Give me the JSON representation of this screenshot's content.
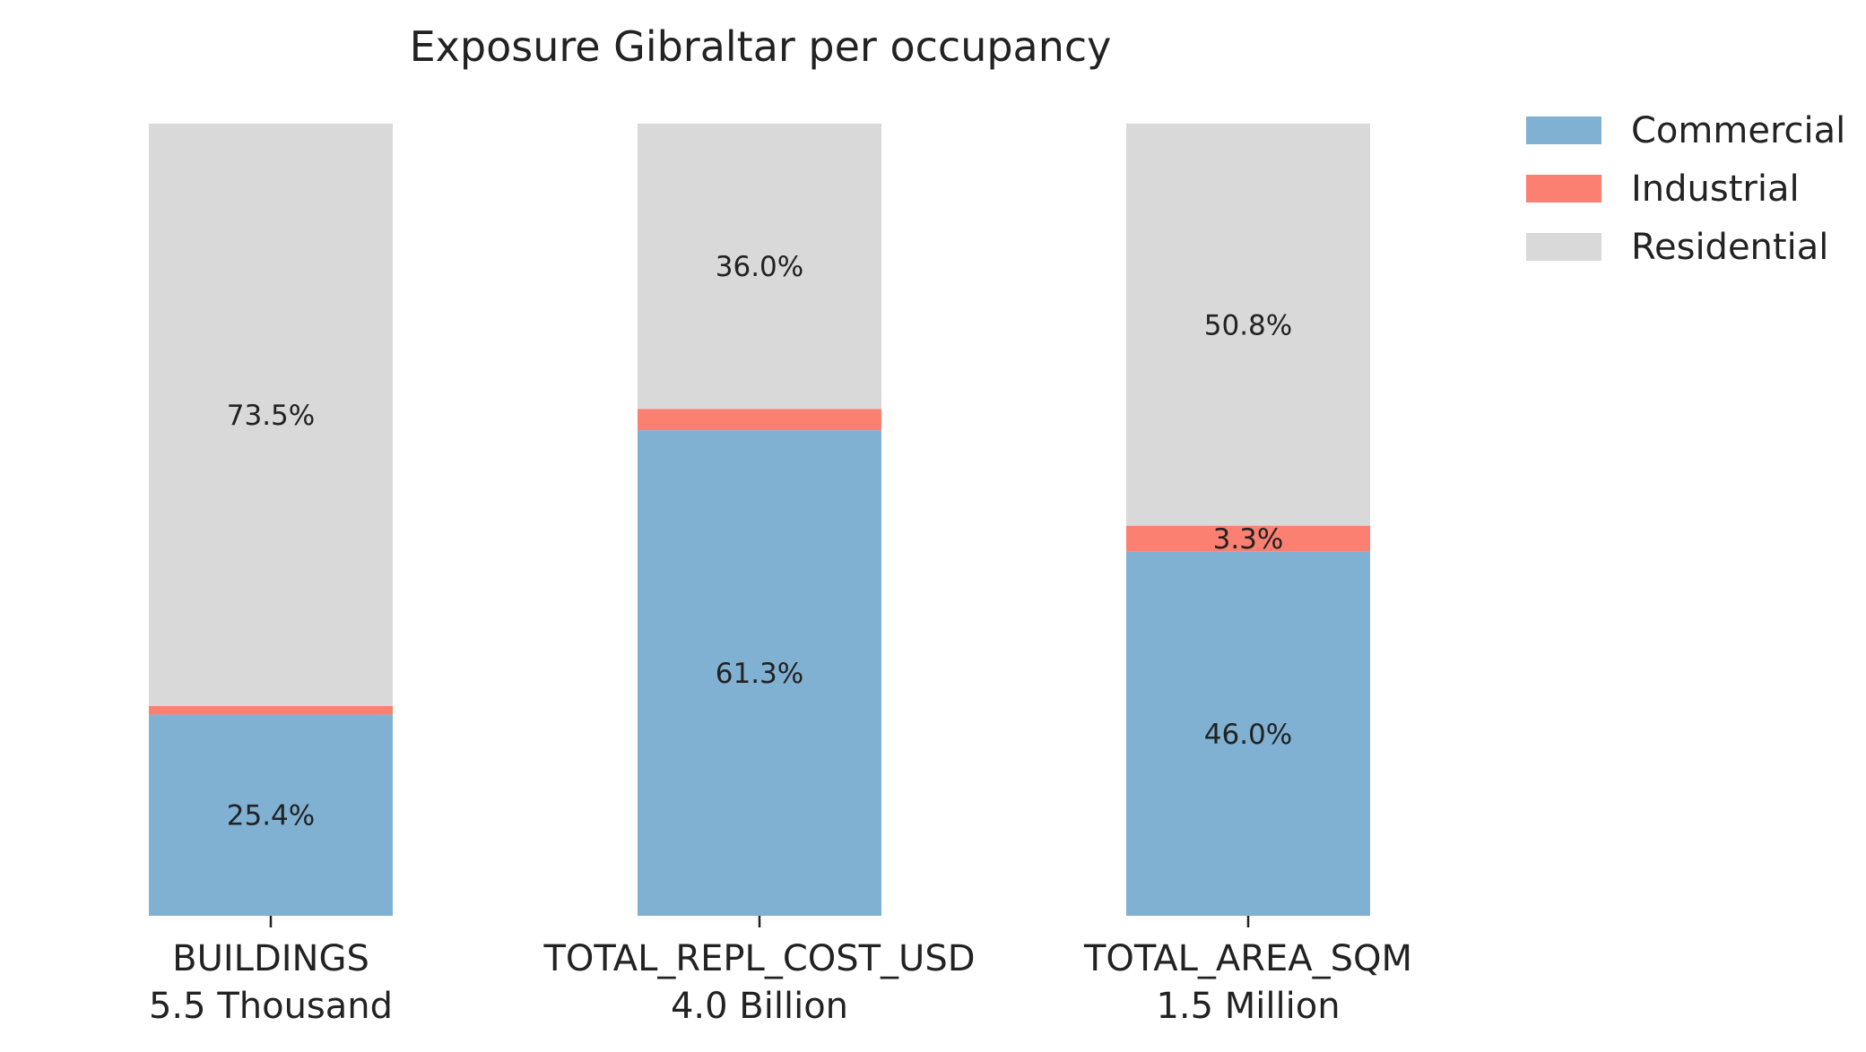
{
  "chart_data": {
    "type": "bar",
    "stacked": true,
    "normalized": true,
    "title": "Exposure Gibraltar per occupancy",
    "categories": [
      "BUILDINGS",
      "TOTAL_REPL_COST_USD",
      "TOTAL_AREA_SQM"
    ],
    "category_totals": [
      "5.5 Thousand",
      "4.0 Billion",
      "1.5 Million"
    ],
    "series": [
      {
        "name": "Commercial",
        "color": "#80b1d3",
        "values": [
          25.4,
          61.3,
          46.0
        ],
        "labels": [
          "25.4%",
          "61.3%",
          "46.0%"
        ]
      },
      {
        "name": "Industrial",
        "color": "#fb8072",
        "values": [
          1.1,
          2.7,
          3.3
        ],
        "labels": [
          "",
          "",
          "3.3%"
        ]
      },
      {
        "name": "Residential",
        "color": "#d9d9d9",
        "values": [
          73.5,
          36.0,
          50.8
        ],
        "labels": [
          "73.5%",
          "36.0%",
          "50.8%"
        ]
      }
    ],
    "ylim": [
      0,
      100
    ],
    "legend_position": "top-right",
    "grid": false
  }
}
